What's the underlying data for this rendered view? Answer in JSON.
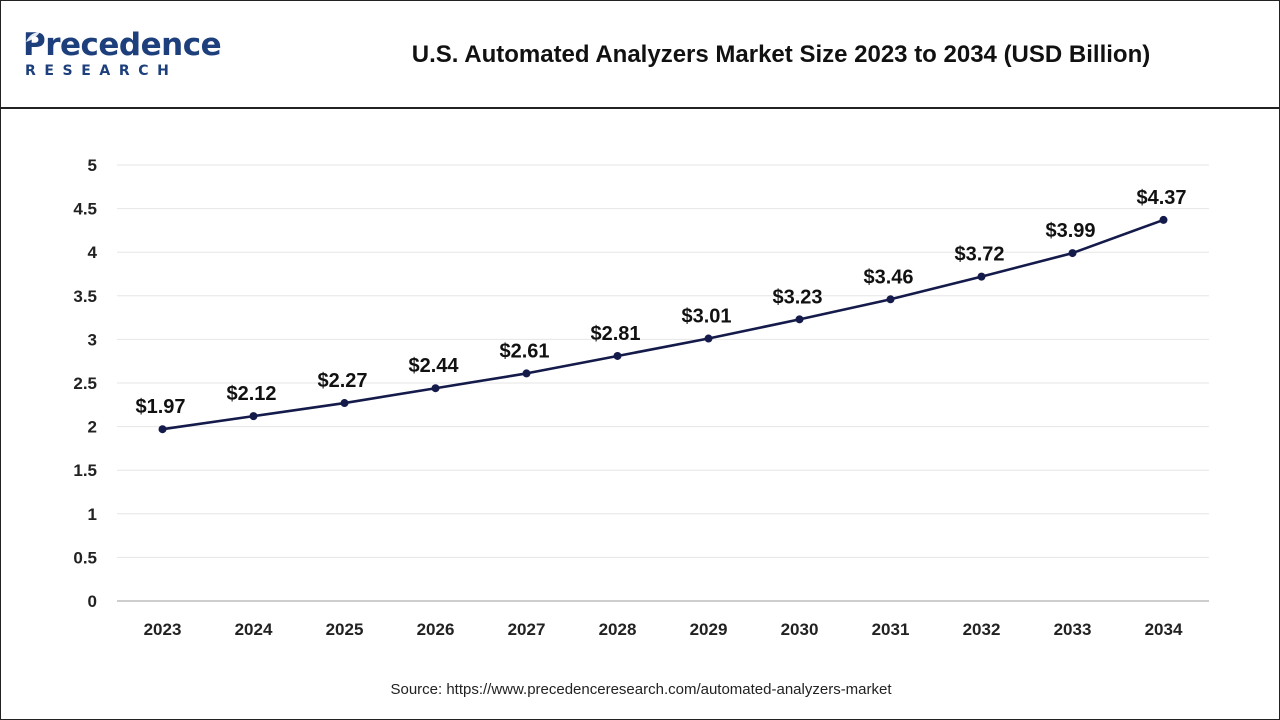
{
  "brand": {
    "name": "Precedence",
    "tagline": "RESEARCH",
    "color": "#1d3f7c"
  },
  "chart_data": {
    "type": "line",
    "title": "U.S. Automated Analyzers Market Size 2023 to 2034 (USD Billion)",
    "xlabel": "",
    "ylabel": "",
    "categories": [
      "2023",
      "2024",
      "2025",
      "2026",
      "2027",
      "2028",
      "2029",
      "2030",
      "2031",
      "2032",
      "2033",
      "2034"
    ],
    "series": [
      {
        "values": [
          1.97,
          2.12,
          2.27,
          2.44,
          2.61,
          2.81,
          3.01,
          3.23,
          3.46,
          3.72,
          3.99,
          4.37
        ],
        "labels": [
          "$1.97",
          "$2.12",
          "$2.27",
          "$2.44",
          "$2.61",
          "$2.81",
          "$3.01",
          "$3.23",
          "$3.46",
          "$3.72",
          "$3.99",
          "$4.37"
        ],
        "color": "#141a4a"
      }
    ],
    "ylim": [
      0,
      5
    ],
    "yticks": [
      0,
      0.5,
      1,
      1.5,
      2,
      2.5,
      3,
      3.5,
      4,
      4.5,
      5
    ],
    "ytick_labels": [
      "0",
      "0.5",
      "1",
      "1.5",
      "2",
      "2.5",
      "3",
      "3.5",
      "4",
      "4.5",
      "5"
    ],
    "grid": true,
    "grid_color": "#e6e6e6",
    "legend": "none"
  },
  "source": "Source: https://www.precedenceresearch.com/automated-analyzers-market"
}
